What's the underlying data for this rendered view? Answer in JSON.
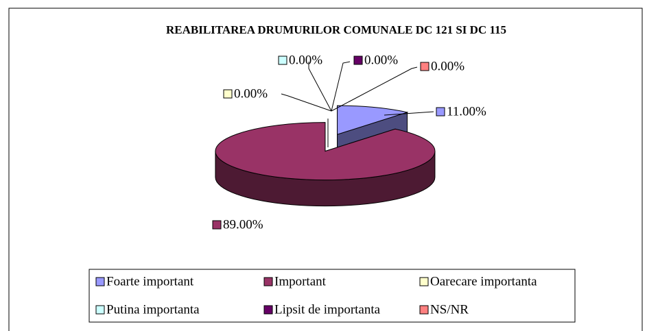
{
  "chart_data": {
    "type": "pie",
    "title": "REABILITAREA DRUMURILOR COMUNALE DC 121 SI DC 115",
    "categories": [
      "Foarte important",
      "Important",
      "Oarecare importanta",
      "Putina importanta",
      "Lipsit de importanta",
      "NS/NR"
    ],
    "values": [
      11,
      89,
      0,
      0,
      0,
      0
    ],
    "value_labels": [
      "11.00%",
      "89.00%",
      "0.00%",
      "0.00%",
      "0.00%",
      "0.00%"
    ],
    "colors": [
      "#9999ff",
      "#993366",
      "#ffffcc",
      "#ccffff",
      "#660066",
      "#ff8080"
    ],
    "legend": "bottom"
  }
}
